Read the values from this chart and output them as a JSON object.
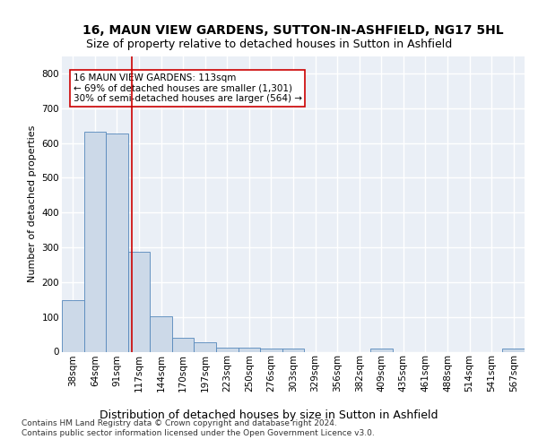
{
  "title1": "16, MAUN VIEW GARDENS, SUTTON-IN-ASHFIELD, NG17 5HL",
  "title2": "Size of property relative to detached houses in Sutton in Ashfield",
  "xlabel": "Distribution of detached houses by size in Sutton in Ashfield",
  "ylabel": "Number of detached properties",
  "footnote": "Contains HM Land Registry data © Crown copyright and database right 2024.\nContains public sector information licensed under the Open Government Licence v3.0.",
  "bin_labels": [
    "38sqm",
    "64sqm",
    "91sqm",
    "117sqm",
    "144sqm",
    "170sqm",
    "197sqm",
    "223sqm",
    "250sqm",
    "276sqm",
    "303sqm",
    "329sqm",
    "356sqm",
    "382sqm",
    "409sqm",
    "435sqm",
    "461sqm",
    "488sqm",
    "514sqm",
    "541sqm",
    "567sqm"
  ],
  "bar_values": [
    148,
    633,
    627,
    287,
    103,
    40,
    28,
    11,
    11,
    8,
    8,
    0,
    0,
    0,
    8,
    0,
    0,
    0,
    0,
    0,
    8
  ],
  "bar_color": "#ccd9e8",
  "bar_edge_color": "#5588bb",
  "vline_x": 2.69,
  "vline_color": "#cc0000",
  "annotation_text": "16 MAUN VIEW GARDENS: 113sqm\n← 69% of detached houses are smaller (1,301)\n30% of semi-detached houses are larger (564) →",
  "annotation_box_color": "white",
  "annotation_box_edge_color": "#cc0000",
  "ylim": [
    0,
    850
  ],
  "yticks": [
    0,
    100,
    200,
    300,
    400,
    500,
    600,
    700,
    800
  ],
  "background_color": "#eaeff6",
  "grid_color": "white",
  "title1_fontsize": 10,
  "title2_fontsize": 9,
  "xlabel_fontsize": 9,
  "ylabel_fontsize": 8,
  "tick_fontsize": 7.5,
  "annot_fontsize": 7.5,
  "footnote_fontsize": 6.5
}
